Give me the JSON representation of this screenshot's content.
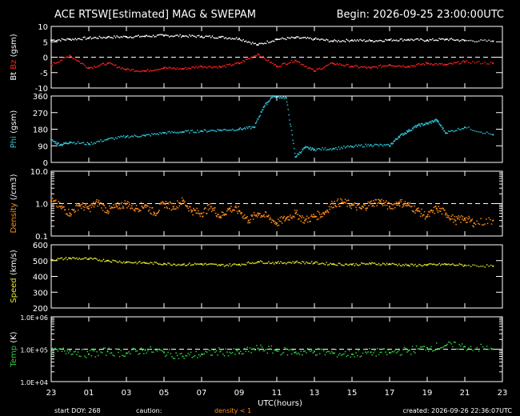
{
  "header": {
    "title": "ACE RTSW[Estimated] MAG & SWEPAM",
    "begin": "Begin: 2026-09-25 23:00:00UTC"
  },
  "footer": {
    "start": "start DOY: 268",
    "caution_label": "caution:",
    "caution_note": "density < 1",
    "created": "created: 2026-09-26 22:36:07UTC"
  },
  "colors": {
    "background": "#000000",
    "axes": "#ffffff",
    "bt": "#ffffff",
    "bz": "#ff2020",
    "phi": "#2ec4d6",
    "density": "#ff8c1a",
    "speed": "#e6e62e",
    "temp": "#2ecc40"
  },
  "chart_data": {
    "type": "scatter",
    "x_axis": {
      "label": "UTC(hours)",
      "ticks": [
        "23",
        "01",
        "03",
        "05",
        "07",
        "09",
        "11",
        "13",
        "15",
        "17",
        "19",
        "21",
        "23"
      ],
      "range_hours": [
        0,
        24
      ]
    },
    "panels": [
      {
        "id": "mag",
        "ylabel_parts": [
          {
            "text": "Bt",
            "color": "#ffffff"
          },
          {
            "text": "Bz",
            "color": "#ff2020"
          },
          {
            "text": "(gsm)",
            "color": "#ffffff"
          }
        ],
        "scale": "linear",
        "ylim": [
          -10,
          10
        ],
        "yticks": [
          {
            "v": 10,
            "t": "10"
          },
          {
            "v": 5,
            "t": "5"
          },
          {
            "v": 0,
            "t": "0"
          },
          {
            "v": -5,
            "t": "-5"
          },
          {
            "v": -10,
            "t": "-10"
          }
        ],
        "ref_line": 0,
        "series": [
          {
            "name": "Bt",
            "color": "#ffffff",
            "x": [
              0,
              1,
              2,
              3,
              4,
              5,
              6,
              7,
              8,
              9,
              10,
              11,
              12,
              13,
              14,
              15,
              16,
              17,
              18,
              19,
              20,
              21,
              22,
              23.5
            ],
            "y": [
              5.5,
              5.8,
              6.2,
              6.5,
              6.6,
              6.8,
              7.0,
              6.9,
              6.7,
              6.5,
              6.0,
              4.0,
              5.8,
              6.3,
              5.9,
              5.2,
              5.5,
              5.3,
              5.6,
              5.7,
              5.5,
              5.8,
              5.4,
              5.2
            ]
          },
          {
            "name": "Bz",
            "color": "#ff2020",
            "x": [
              0,
              1,
              2,
              3,
              4,
              5,
              6,
              7,
              8,
              9,
              10,
              11,
              12,
              13,
              14,
              15,
              16,
              17,
              18,
              19,
              20,
              21,
              22,
              23.5
            ],
            "y": [
              -2.5,
              0.5,
              -3.5,
              -2.0,
              -4.0,
              -4.5,
              -3.5,
              -3.8,
              -3.0,
              -3.2,
              -2.0,
              1.0,
              -3.0,
              -1.0,
              -4.5,
              -2.0,
              -3.0,
              -3.5,
              -2.5,
              -3.0,
              -2.0,
              -2.5,
              -1.5,
              -2.0
            ]
          }
        ]
      },
      {
        "id": "phi",
        "ylabel_parts": [
          {
            "text": "Phi",
            "color": "#2ec4d6"
          },
          {
            "text": "(gsm)",
            "color": "#ffffff"
          }
        ],
        "scale": "linear",
        "ylim": [
          0,
          360
        ],
        "yticks": [
          {
            "v": 360,
            "t": "360"
          },
          {
            "v": 270,
            "t": "270"
          },
          {
            "v": 180,
            "t": "180"
          },
          {
            "v": 90,
            "t": "90"
          },
          {
            "v": 0,
            "t": "0"
          }
        ],
        "series": [
          {
            "name": "Phi",
            "color": "#2ec4d6",
            "x": [
              0,
              0.5,
              1,
              2,
              3,
              4,
              5,
              6,
              7,
              8,
              9,
              10,
              10.8,
              11.3,
              11.8,
              12.5,
              13,
              13.5,
              14,
              15,
              16,
              17,
              18,
              18.5,
              19,
              19.5,
              20,
              20.5,
              21,
              22,
              23.5
            ],
            "y": [
              120,
              95,
              110,
              100,
              125,
              140,
              145,
              160,
              165,
              170,
              175,
              180,
              190,
              300,
              360,
              350,
              30,
              80,
              70,
              75,
              85,
              95,
              90,
              140,
              170,
              200,
              210,
              230,
              160,
              190,
              150
            ]
          }
        ]
      },
      {
        "id": "density",
        "ylabel_parts": [
          {
            "text": "Density",
            "color": "#ff8c1a"
          },
          {
            "text": "(/cm3)",
            "color": "#ffffff"
          }
        ],
        "scale": "log",
        "ylim": [
          0.1,
          10.0
        ],
        "yticks": [
          {
            "v": 10,
            "t": "10.0"
          },
          {
            "v": 1,
            "t": "1.0"
          },
          {
            "v": 0.1,
            "t": "0.1"
          }
        ],
        "ref_line": 1.0,
        "series": [
          {
            "name": "Density",
            "color": "#ff8c1a",
            "x": [
              0,
              0.5,
              1,
              1.5,
              2,
              2.5,
              3,
              3.5,
              4,
              4.5,
              5,
              5.5,
              6,
              6.5,
              7,
              7.5,
              8,
              8.5,
              9,
              9.5,
              10,
              10.5,
              11,
              11.5,
              12,
              12.5,
              13,
              13.5,
              14,
              14.5,
              15,
              15.5,
              16,
              16.5,
              17,
              17.5,
              18,
              18.5,
              19,
              19.5,
              20,
              20.5,
              21,
              21.5,
              22,
              22.5,
              23.5
            ],
            "y": [
              1.2,
              0.8,
              0.5,
              0.9,
              0.7,
              1.1,
              0.6,
              0.8,
              1.0,
              0.7,
              0.9,
              0.5,
              1.0,
              0.8,
              1.2,
              0.6,
              0.5,
              0.8,
              0.4,
              0.7,
              0.6,
              0.3,
              0.5,
              0.4,
              0.25,
              0.35,
              0.5,
              0.3,
              0.4,
              0.5,
              1.0,
              1.1,
              0.9,
              0.7,
              1.0,
              1.2,
              0.8,
              1.1,
              0.9,
              0.6,
              0.4,
              0.7,
              0.5,
              0.3,
              0.35,
              0.25,
              0.3
            ]
          }
        ]
      },
      {
        "id": "speed",
        "ylabel_parts": [
          {
            "text": "Speed",
            "color": "#e6e62e"
          },
          {
            "text": "(km/s)",
            "color": "#ffffff"
          }
        ],
        "scale": "linear",
        "ylim": [
          200,
          600
        ],
        "yticks": [
          {
            "v": 600,
            "t": "600"
          },
          {
            "v": 500,
            "t": "500"
          },
          {
            "v": 400,
            "t": "400"
          },
          {
            "v": 300,
            "t": "300"
          },
          {
            "v": 200,
            "t": "200"
          }
        ],
        "series": [
          {
            "name": "Speed",
            "color": "#e6e62e",
            "x": [
              0,
              1,
              2,
              3,
              4,
              5,
              6,
              7,
              8,
              9,
              10,
              11,
              12,
              13,
              14,
              15,
              16,
              17,
              18,
              19,
              20,
              21,
              22,
              23.5
            ],
            "y": [
              505,
              515,
              510,
              500,
              490,
              485,
              480,
              475,
              478,
              470,
              475,
              492,
              485,
              490,
              485,
              478,
              475,
              480,
              478,
              470,
              472,
              476,
              470,
              465
            ]
          }
        ]
      },
      {
        "id": "temp",
        "ylabel_parts": [
          {
            "text": "Temp",
            "color": "#2ecc40"
          },
          {
            "text": "(K)",
            "color": "#ffffff"
          }
        ],
        "scale": "log",
        "ylim": [
          10000,
          1000000
        ],
        "yticks": [
          {
            "v": 1000000,
            "t": "1.0E+06"
          },
          {
            "v": 100000,
            "t": "1.0E+05"
          },
          {
            "v": 10000,
            "t": "1.0E+04"
          }
        ],
        "ref_line": 100000,
        "series": [
          {
            "name": "Temp",
            "color": "#2ecc40",
            "x": [
              0,
              1,
              2,
              3,
              4,
              5,
              6,
              7,
              8,
              9,
              10,
              11,
              12,
              13,
              14,
              15,
              16,
              17,
              18,
              19,
              20,
              21,
              22,
              23.5
            ],
            "y": [
              80000,
              90000,
              70000,
              85000,
              75000,
              95000,
              80000,
              60000,
              70000,
              85000,
              75000,
              105000,
              90000,
              80000,
              85000,
              75000,
              70000,
              80000,
              78000,
              90000,
              110000,
              130000,
              120000,
              100000
            ]
          }
        ]
      }
    ]
  }
}
